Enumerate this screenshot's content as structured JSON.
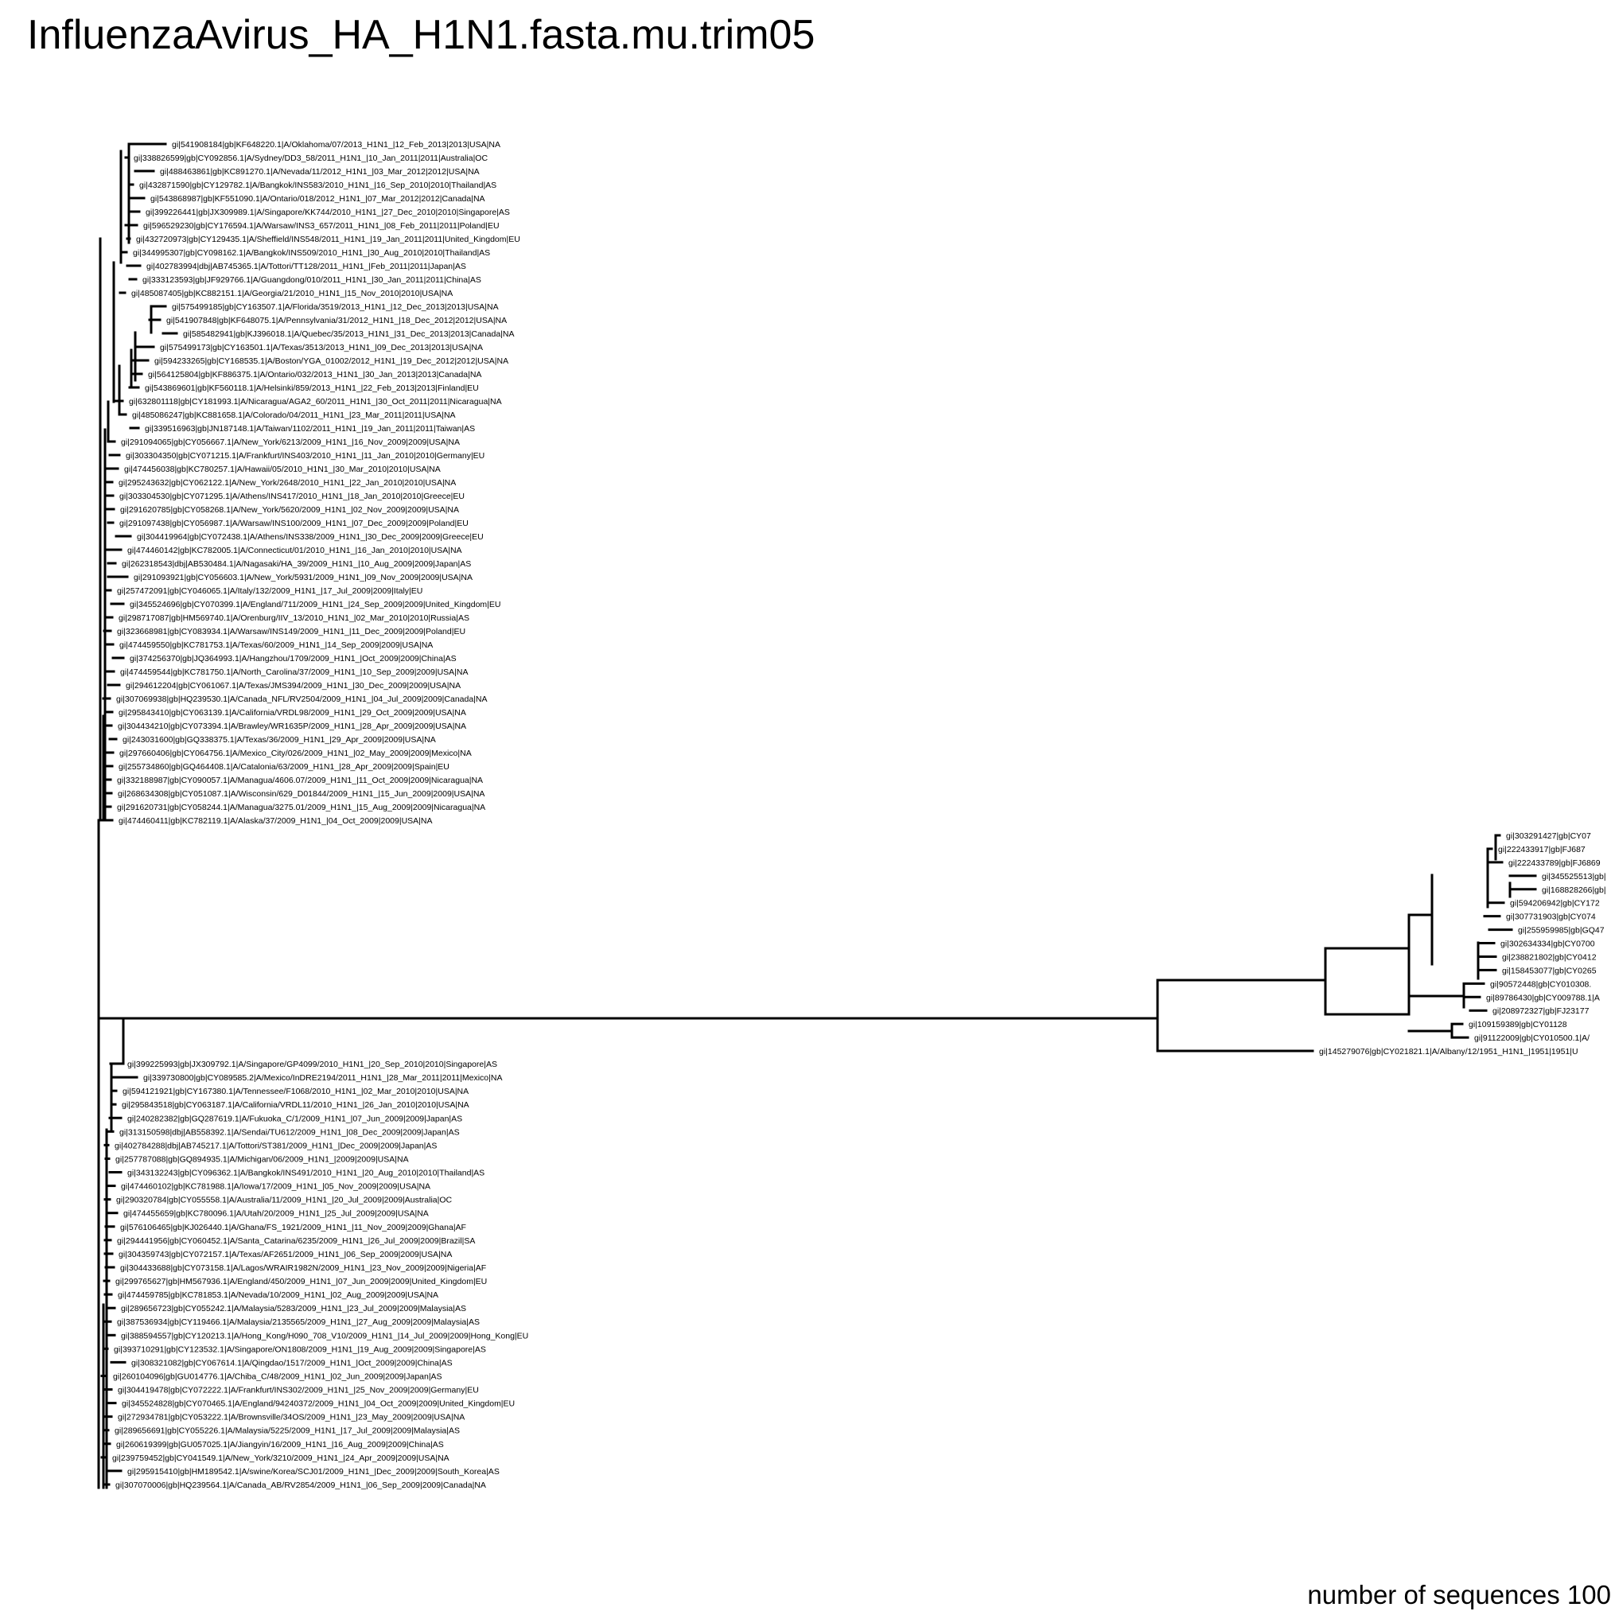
{
  "title": "InfluenzaAvirus_HA_H1N1.fasta.mu.trim05",
  "footer": "number of sequences 100",
  "tree": {
    "labels_upper": [
      "gi|541908184|gb|KF648220.1|A/Oklahoma/07/2013_H1N1_|12_Feb_2013|2013|USA|NA",
      "gi|338826599|gb|CY092856.1|A/Sydney/DD3_58/2011_H1N1_|10_Jan_2011|2011|Australia|OC",
      "gi|488463861|gb|KC891270.1|A/Nevada/11/2012_H1N1_|03_Mar_2012|2012|USA|NA",
      "gi|432871590|gb|CY129782.1|A/Bangkok/INS583/2010_H1N1_|16_Sep_2010|2010|Thailand|AS",
      "gi|543868987|gb|KF551090.1|A/Ontario/018/2012_H1N1_|07_Mar_2012|2012|Canada|NA",
      "gi|399226441|gb|JX309989.1|A/Singapore/KK744/2010_H1N1_|27_Dec_2010|2010|Singapore|AS",
      "gi|596529230|gb|CY176594.1|A/Warsaw/INS3_657/2011_H1N1_|08_Feb_2011|2011|Poland|EU",
      "gi|432720973|gb|CY129435.1|A/Sheffield/INS548/2011_H1N1_|19_Jan_2011|2011|United_Kingdom|EU",
      "gi|344995307|gb|CY098162.1|A/Bangkok/INS509/2010_H1N1_|30_Aug_2010|2010|Thailand|AS",
      "gi|402783994|dbj|AB745365.1|A/Tottori/TT128/2011_H1N1_|Feb_2011|2011|Japan|AS",
      "gi|333123593|gb|JF929766.1|A/Guangdong/010/2011_H1N1_|30_Jan_2011|2011|China|AS",
      "gi|485087405|gb|KC882151.1|A/Georgia/21/2010_H1N1_|15_Nov_2010|2010|USA|NA",
      "gi|575499185|gb|CY163507.1|A/Florida/3519/2013_H1N1_|12_Dec_2013|2013|USA|NA",
      "gi|541907848|gb|KF648075.1|A/Pennsylvania/31/2012_H1N1_|18_Dec_2012|2012|USA|NA",
      "gi|585482941|gb|KJ396018.1|A/Quebec/35/2013_H1N1_|31_Dec_2013|2013|Canada|NA",
      "gi|575499173|gb|CY163501.1|A/Texas/3513/2013_H1N1_|09_Dec_2013|2013|USA|NA",
      "gi|594233265|gb|CY168535.1|A/Boston/YGA_01002/2012_H1N1_|19_Dec_2012|2012|USA|NA",
      "gi|564125804|gb|KF886375.1|A/Ontario/032/2013_H1N1_|30_Jan_2013|2013|Canada|NA",
      "gi|543869601|gb|KF560118.1|A/Helsinki/859/2013_H1N1_|22_Feb_2013|2013|Finland|EU",
      "gi|632801118|gb|CY181993.1|A/Nicaragua/AGA2_60/2011_H1N1_|30_Oct_2011|2011|Nicaragua|NA",
      "gi|485086247|gb|KC881658.1|A/Colorado/04/2011_H1N1_|23_Mar_2011|2011|USA|NA",
      "gi|339516963|gb|JN187148.1|A/Taiwan/1102/2011_H1N1_|19_Jan_2011|2011|Taiwan|AS",
      "gi|291094065|gb|CY056667.1|A/New_York/6213/2009_H1N1_|16_Nov_2009|2009|USA|NA",
      "gi|303304350|gb|CY071215.1|A/Frankfurt/INS403/2010_H1N1_|11_Jan_2010|2010|Germany|EU",
      "gi|474456038|gb|KC780257.1|A/Hawaii/05/2010_H1N1_|30_Mar_2010|2010|USA|NA",
      "gi|295243632|gb|CY062122.1|A/New_York/2648/2010_H1N1_|22_Jan_2010|2010|USA|NA",
      "gi|303304530|gb|CY071295.1|A/Athens/INS417/2010_H1N1_|18_Jan_2010|2010|Greece|EU",
      "gi|291620785|gb|CY058268.1|A/New_York/5620/2009_H1N1_|02_Nov_2009|2009|USA|NA",
      "gi|291097438|gb|CY056987.1|A/Warsaw/INS100/2009_H1N1_|07_Dec_2009|2009|Poland|EU",
      "gi|304419964|gb|CY072438.1|A/Athens/INS338/2009_H1N1_|30_Dec_2009|2009|Greece|EU",
      "gi|474460142|gb|KC782005.1|A/Connecticut/01/2010_H1N1_|16_Jan_2010|2010|USA|NA",
      "gi|262318543|dbj|AB530484.1|A/Nagasaki/HA_39/2009_H1N1_|10_Aug_2009|2009|Japan|AS",
      "gi|291093921|gb|CY056603.1|A/New_York/5931/2009_H1N1_|09_Nov_2009|2009|USA|NA",
      "gi|257472091|gb|CY046065.1|A/Italy/132/2009_H1N1_|17_Jul_2009|2009|Italy|EU",
      "gi|345524696|gb|CY070399.1|A/England/711/2009_H1N1_|24_Sep_2009|2009|United_Kingdom|EU",
      "gi|298717087|gb|HM569740.1|A/Orenburg/IIV_13/2010_H1N1_|02_Mar_2010|2010|Russia|AS",
      "gi|323668981|gb|CY083934.1|A/Warsaw/INS149/2009_H1N1_|11_Dec_2009|2009|Poland|EU",
      "gi|474459550|gb|KC781753.1|A/Texas/60/2009_H1N1_|14_Sep_2009|2009|USA|NA",
      "gi|374256370|gb|JQ364993.1|A/Hangzhou/1709/2009_H1N1_|Oct_2009|2009|China|AS",
      "gi|474459544|gb|KC781750.1|A/North_Carolina/37/2009_H1N1_|10_Sep_2009|2009|USA|NA",
      "gi|294612204|gb|CY061067.1|A/Texas/JMS394/2009_H1N1_|30_Dec_2009|2009|USA|NA",
      "gi|307069938|gb|HQ239530.1|A/Canada_NFL/RV2504/2009_H1N1_|04_Jul_2009|2009|Canada|NA",
      "gi|295843410|gb|CY063139.1|A/California/VRDL98/2009_H1N1_|29_Oct_2009|2009|USA|NA",
      "gi|304434210|gb|CY073394.1|A/Brawley/WR1635P/2009_H1N1_|28_Apr_2009|2009|USA|NA",
      "gi|243031600|gb|GQ338375.1|A/Texas/36/2009_H1N1_|29_Apr_2009|2009|USA|NA",
      "gi|297660406|gb|CY064756.1|A/Mexico_City/026/2009_H1N1_|02_May_2009|2009|Mexico|NA",
      "gi|255734860|gb|GQ464408.1|A/Catalonia/63/2009_H1N1_|28_Apr_2009|2009|Spain|EU",
      "gi|332188987|gb|CY090057.1|A/Managua/4606.07/2009_H1N1_|11_Oct_2009|2009|Nicaragua|NA",
      "gi|268634308|gb|CY051087.1|A/Wisconsin/629_D01844/2009_H1N1_|15_Jun_2009|2009|USA|NA",
      "gi|291620731|gb|CY058244.1|A/Managua/3275.01/2009_H1N1_|15_Aug_2009|2009|Nicaragua|NA",
      "gi|474460411|gb|KC782119.1|A/Alaska/37/2009_H1N1_|04_Oct_2009|2009|USA|NA"
    ],
    "labels_right": [
      "gi|303291427|gb|CY07",
      "gi|222433917|gb|FJ687",
      "gi|222433789|gb|FJ6869",
      "gi|345525513|gb|",
      "gi|168828266|gb|",
      "gi|594206942|gb|CY172",
      "gi|307731903|gb|CY074",
      "gi|255959985|gb|GQ47",
      "gi|302634334|gb|CY0700",
      "gi|238821802|gb|CY0412",
      "gi|158453077|gb|CY0265",
      "gi|90572448|gb|CY010308.",
      "gi|89786430|gb|CY009788.1|A",
      "gi|208972327|gb|FJ23177",
      "gi|109159389|gb|CY01128",
      "gi|91122009|gb|CY010500.1|A/",
      "gi|145279076|gb|CY021821.1|A/Albany/12/1951_H1N1_|1951|1951|U"
    ],
    "labels_lower": [
      "gi|399225993|gb|JX309792.1|A/Singapore/GP4099/2010_H1N1_|20_Sep_2010|2010|Singapore|AS",
      "gi|339730800|gb|CY089585.2|A/Mexico/InDRE2194/2011_H1N1_|28_Mar_2011|2011|Mexico|NA",
      "gi|594121921|gb|CY167380.1|A/Tennessee/F1068/2010_H1N1_|02_Mar_2010|2010|USA|NA",
      "gi|295843518|gb|CY063187.1|A/California/VRDL11/2010_H1N1_|26_Jan_2010|2010|USA|NA",
      "gi|240282382|gb|GQ287619.1|A/Fukuoka_C/1/2009_H1N1_|07_Jun_2009|2009|Japan|AS",
      "gi|313150598|dbj|AB558392.1|A/Sendai/TU612/2009_H1N1_|08_Dec_2009|2009|Japan|AS",
      "gi|402784288|dbj|AB745217.1|A/Tottori/ST381/2009_H1N1_|Dec_2009|2009|Japan|AS",
      "gi|257787088|gb|GQ894935.1|A/Michigan/06/2009_H1N1_|2009|2009|USA|NA",
      "gi|343132243|gb|CY096362.1|A/Bangkok/INS491/2010_H1N1_|20_Aug_2010|2010|Thailand|AS",
      "gi|474460102|gb|KC781988.1|A/Iowa/17/2009_H1N1_|05_Nov_2009|2009|USA|NA",
      "gi|290320784|gb|CY055558.1|A/Australia/11/2009_H1N1_|20_Jul_2009|2009|Australia|OC",
      "gi|474455659|gb|KC780096.1|A/Utah/20/2009_H1N1_|25_Jul_2009|2009|USA|NA",
      "gi|576106465|gb|KJ026440.1|A/Ghana/FS_1921/2009_H1N1_|11_Nov_2009|2009|Ghana|AF",
      "gi|294441956|gb|CY060452.1|A/Santa_Catarina/6235/2009_H1N1_|26_Jul_2009|2009|Brazil|SA",
      "gi|304359743|gb|CY072157.1|A/Texas/AF2651/2009_H1N1_|06_Sep_2009|2009|USA|NA",
      "gi|304433688|gb|CY073158.1|A/Lagos/WRAIR1982N/2009_H1N1_|23_Nov_2009|2009|Nigeria|AF",
      "gi|299765627|gb|HM567936.1|A/England/450/2009_H1N1_|07_Jun_2009|2009|United_Kingdom|EU",
      "gi|474459785|gb|KC781853.1|A/Nevada/10/2009_H1N1_|02_Aug_2009|2009|USA|NA",
      "gi|289656723|gb|CY055242.1|A/Malaysia/5283/2009_H1N1_|23_Jul_2009|2009|Malaysia|AS",
      "gi|387536934|gb|CY119466.1|A/Malaysia/2135565/2009_H1N1_|27_Aug_2009|2009|Malaysia|AS",
      "gi|388594557|gb|CY120213.1|A/Hong_Kong/H090_708_V10/2009_H1N1_|14_Jul_2009|2009|Hong_Kong|EU",
      "gi|393710291|gb|CY123532.1|A/Singapore/ON1808/2009_H1N1_|19_Aug_2009|2009|Singapore|AS",
      "gi|308321082|gb|CY067614.1|A/Qingdao/1517/2009_H1N1_|Oct_2009|2009|China|AS",
      "gi|260104096|gb|GU014776.1|A/Chiba_C/48/2009_H1N1_|02_Jun_2009|2009|Japan|AS",
      "gi|304419478|gb|CY072222.1|A/Frankfurt/INS302/2009_H1N1_|25_Nov_2009|2009|Germany|EU",
      "gi|345524828|gb|CY070465.1|A/England/94240372/2009_H1N1_|04_Oct_2009|2009|United_Kingdom|EU",
      "gi|272934781|gb|CY053222.1|A/Brownsville/34OS/2009_H1N1_|23_May_2009|2009|USA|NA",
      "gi|289656691|gb|CY055226.1|A/Malaysia/5225/2009_H1N1_|17_Jul_2009|2009|Malaysia|AS",
      "gi|260619399|gb|GU057025.1|A/Jiangyin/16/2009_H1N1_|16_Aug_2009|2009|China|AS",
      "gi|239759452|gb|CY041549.1|A/New_York/3210/2009_H1N1_|24_Apr_2009|2009|USA|NA",
      "gi|295915410|gb|HM189542.1|A/swine/Korea/SCJ01/2009_H1N1_|Dec_2009|2009|South_Korea|AS",
      "gi|307070006|gb|HQ239564.1|A/Canada_AB/RV2854/2009_H1N1_|06_Sep_2009|2009|Canada|NA"
    ]
  }
}
